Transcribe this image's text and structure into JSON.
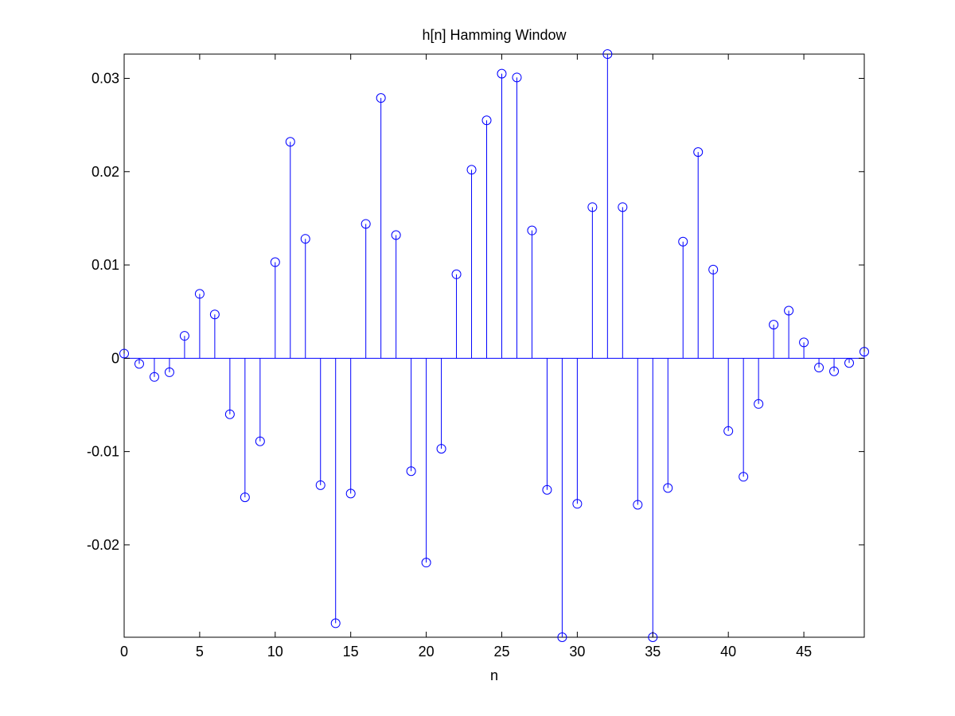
{
  "chart_data": {
    "type": "stem",
    "title": "h[n] Hamming Window",
    "xlabel": "n",
    "ylabel": "",
    "xlim": [
      0,
      49
    ],
    "ylim": [
      -0.0299,
      0.0326
    ],
    "x_ticks": [
      0,
      5,
      10,
      15,
      20,
      25,
      30,
      35,
      40,
      45
    ],
    "y_ticks": [
      -0.02,
      -0.01,
      0,
      0.01,
      0.02,
      0.03
    ],
    "y_tick_labels": [
      "-0.02",
      "-0.01",
      "0",
      "0.01",
      "0.02",
      "0.03"
    ],
    "grid": false,
    "series": [
      {
        "x": [
          0,
          1,
          2,
          3,
          4,
          5,
          6,
          7,
          8,
          9,
          10,
          11,
          12,
          13,
          14,
          15,
          16,
          17,
          18,
          19,
          20,
          21,
          22,
          23,
          24,
          25,
          26,
          27,
          28,
          29,
          30,
          31,
          32,
          33,
          34,
          35,
          36,
          37,
          38,
          39,
          40,
          41,
          42,
          43,
          44,
          45,
          46,
          47,
          48,
          49
        ],
        "values": [
          0.0005,
          -0.0006,
          -0.002,
          -0.0015,
          0.0024,
          0.0069,
          0.0047,
          -0.006,
          -0.0149,
          -0.0089,
          0.0103,
          0.0232,
          0.0128,
          -0.0136,
          -0.0284,
          -0.0145,
          0.0144,
          0.0279,
          0.0132,
          -0.0121,
          -0.0219,
          -0.0097,
          0.009,
          0.0202,
          0.0255,
          0.0305,
          0.0301,
          0.0137,
          -0.0141,
          -0.0299,
          -0.0156,
          0.0162,
          0.0326,
          0.0162,
          -0.0157,
          -0.0299,
          -0.0139,
          0.0125,
          0.0221,
          0.0095,
          -0.0078,
          -0.0127,
          -0.0049,
          0.0036,
          0.0051,
          0.0017,
          -0.001,
          -0.0014,
          -0.0005,
          0.0007
        ]
      }
    ],
    "colors": {
      "stem": "#0000ff",
      "axes": "#000000",
      "background": "#ffffff"
    }
  }
}
